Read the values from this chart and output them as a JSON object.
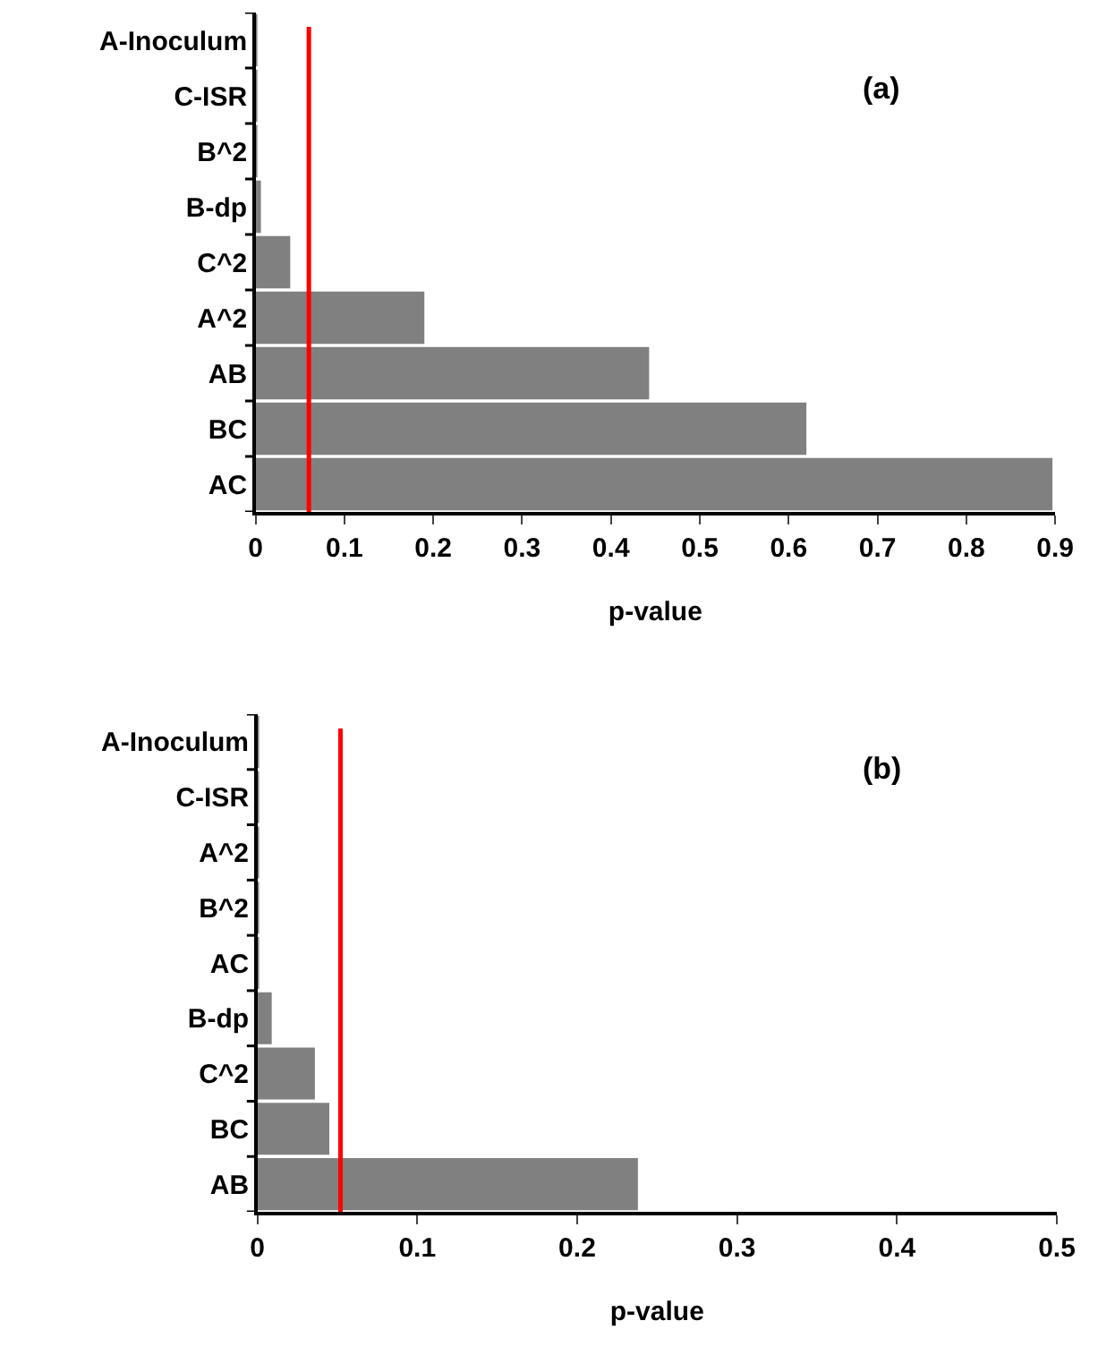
{
  "chart_data": [
    {
      "type": "bar",
      "orientation": "horizontal",
      "categories": [
        "A-Inoculum",
        "C-ISR",
        "B^2",
        "B-dp",
        "C^2",
        "A^2",
        "AB",
        "BC",
        "AC"
      ],
      "values": [
        0.001,
        0.001,
        0.001,
        0.006,
        0.039,
        0.19,
        0.443,
        0.62,
        0.897
      ],
      "color": "#808080",
      "xlabel": "p-value",
      "xlim": [
        0,
        0.9
      ],
      "xticks": [
        0,
        0.1,
        0.2,
        0.3,
        0.4,
        0.5,
        0.6,
        0.7,
        0.8,
        0.9
      ],
      "ref_lines": [
        {
          "axis": "x",
          "value": 0.06,
          "color": "#ff0000"
        }
      ],
      "annotations": [
        "(a)"
      ]
    },
    {
      "type": "bar",
      "orientation": "horizontal",
      "categories": [
        "A-Inoculum",
        "C-ISR",
        "A^2",
        "B^2",
        "AC",
        "B-dp",
        "C^2",
        "BC",
        "AB"
      ],
      "values": [
        0.001,
        0.001,
        0.001,
        0.001,
        0.001,
        0.009,
        0.036,
        0.045,
        0.238
      ],
      "color": "#808080",
      "xlabel": "p-value",
      "xlim": [
        0,
        0.5
      ],
      "xticks": [
        0,
        0.1,
        0.2,
        0.3,
        0.4,
        0.5
      ],
      "ref_lines": [
        {
          "axis": "x",
          "value": 0.052,
          "color": "#ff0000"
        }
      ],
      "annotations": [
        "(b)"
      ]
    }
  ]
}
